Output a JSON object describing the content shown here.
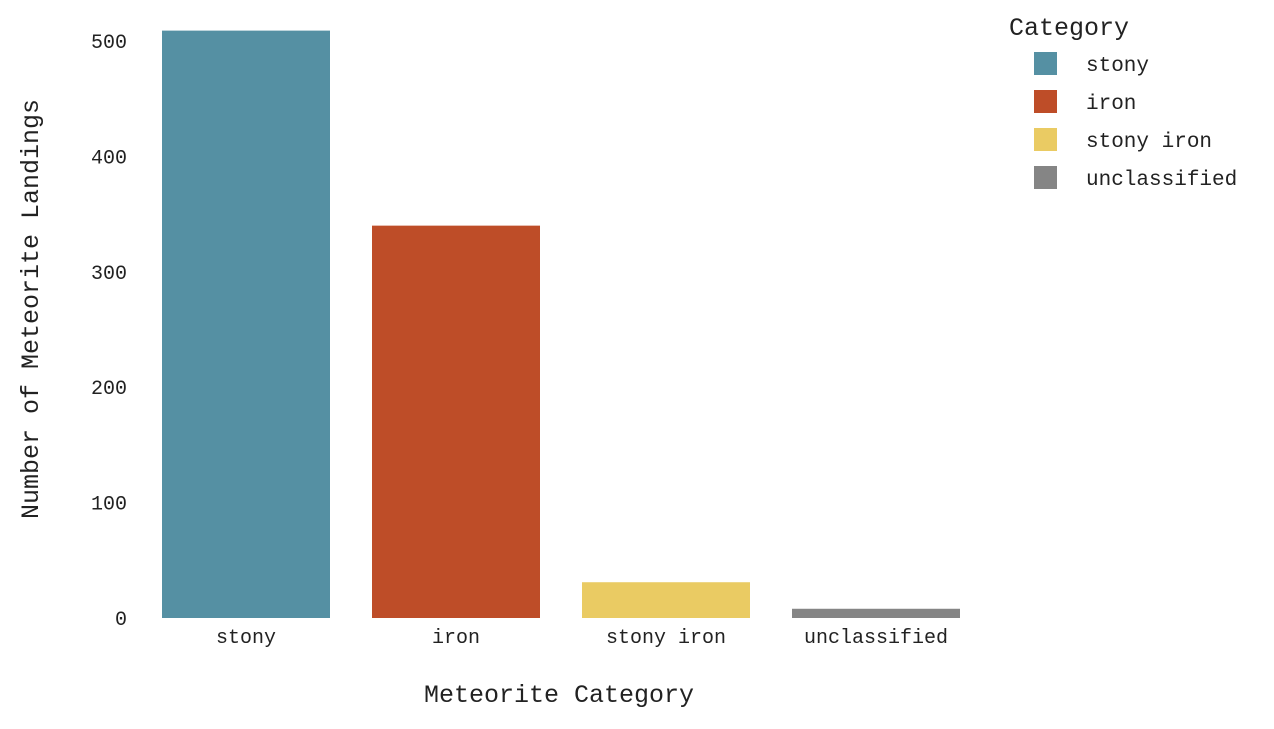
{
  "chart_data": {
    "type": "bar",
    "categories": [
      "stony",
      "iron",
      "stony iron",
      "unclassified"
    ],
    "values": [
      509,
      340,
      31,
      8
    ],
    "colors": [
      "#5590a3",
      "#be4d28",
      "#eacb63",
      "#858585"
    ],
    "title": "",
    "xlabel": "Meteorite Category",
    "ylabel": "Number of Meteorite Landings",
    "ylim": [
      0,
      510
    ],
    "yticks": [
      0,
      100,
      200,
      300,
      400,
      500
    ],
    "grid": false,
    "legend": {
      "title": "Category",
      "position": "top-right",
      "entries": [
        "stony",
        "iron",
        "stony iron",
        "unclassified"
      ]
    }
  }
}
